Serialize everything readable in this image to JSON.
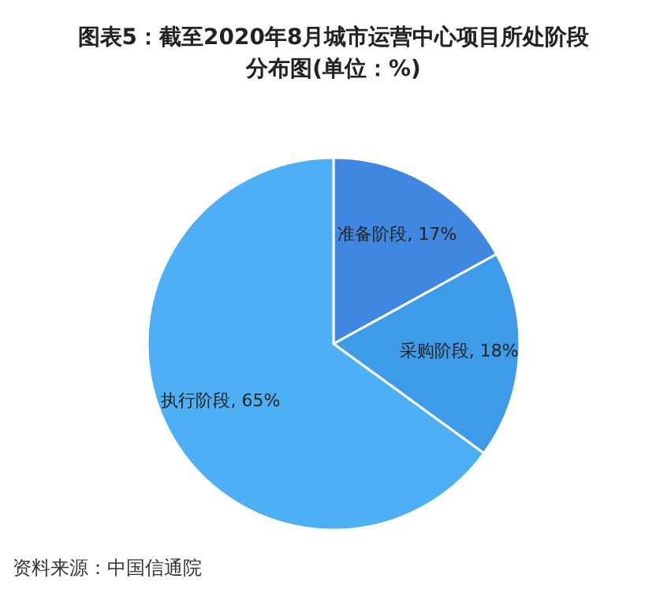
{
  "chart_data": {
    "type": "pie",
    "title": "图表5：截至2020年8月城市运营中心项目所处阶段分布图(单位：%)",
    "categories": [
      "准备阶段",
      "采购阶段",
      "执行阶段"
    ],
    "values": [
      17,
      18,
      65
    ],
    "colors": [
      "#3f87e0",
      "#3d9be9",
      "#4db0f5"
    ],
    "value_labels": [
      ", 17%",
      ", 18%",
      ", 65%"
    ],
    "annotations": [
      "资料来源：中国信通院"
    ]
  }
}
